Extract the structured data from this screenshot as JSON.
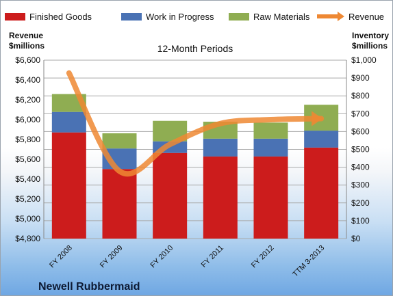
{
  "chart_data": {
    "type": "bar",
    "title": "12-Month Periods",
    "footer": "Newell Rubbermaid",
    "categories": [
      "FY 2008",
      "FY 2009",
      "FY 2010",
      "FY 2011",
      "FY 2012",
      "TTM 3-2013"
    ],
    "stacked": true,
    "left_axis": {
      "label_lines": [
        "Revenue",
        "$millions"
      ],
      "range": [
        4800,
        6600
      ],
      "ticks": [
        "$4,800",
        "$5,000",
        "$5,200",
        "$5,400",
        "$5,600",
        "$5,800",
        "$6,000",
        "$6,200",
        "$6,400",
        "$6,600"
      ]
    },
    "right_axis": {
      "label_lines": [
        "Inventory",
        "$millions"
      ],
      "range": [
        0,
        1000
      ],
      "ticks": [
        "$0",
        "$100",
        "$200",
        "$300",
        "$400",
        "$500",
        "$600",
        "$700",
        "$800",
        "$900",
        "$1,000"
      ]
    },
    "series": [
      {
        "name": "Finished Goods",
        "axis": "right",
        "color": "#cc1c1c",
        "values": [
          595,
          390,
          480,
          460,
          460,
          510
        ]
      },
      {
        "name": "Work in Progress",
        "axis": "right",
        "color": "#4a72b4",
        "values": [
          115,
          115,
          65,
          100,
          100,
          95
        ]
      },
      {
        "name": "Raw Materials",
        "axis": "right",
        "color": "#8fad52",
        "values": [
          100,
          85,
          115,
          95,
          90,
          145
        ]
      },
      {
        "name": "Revenue",
        "axis": "left",
        "type": "line",
        "color": "#ee8833",
        "values": [
          6470,
          5480,
          5750,
          5960,
          6000,
          6010
        ]
      }
    ],
    "legend_position": "top",
    "grid": true
  }
}
